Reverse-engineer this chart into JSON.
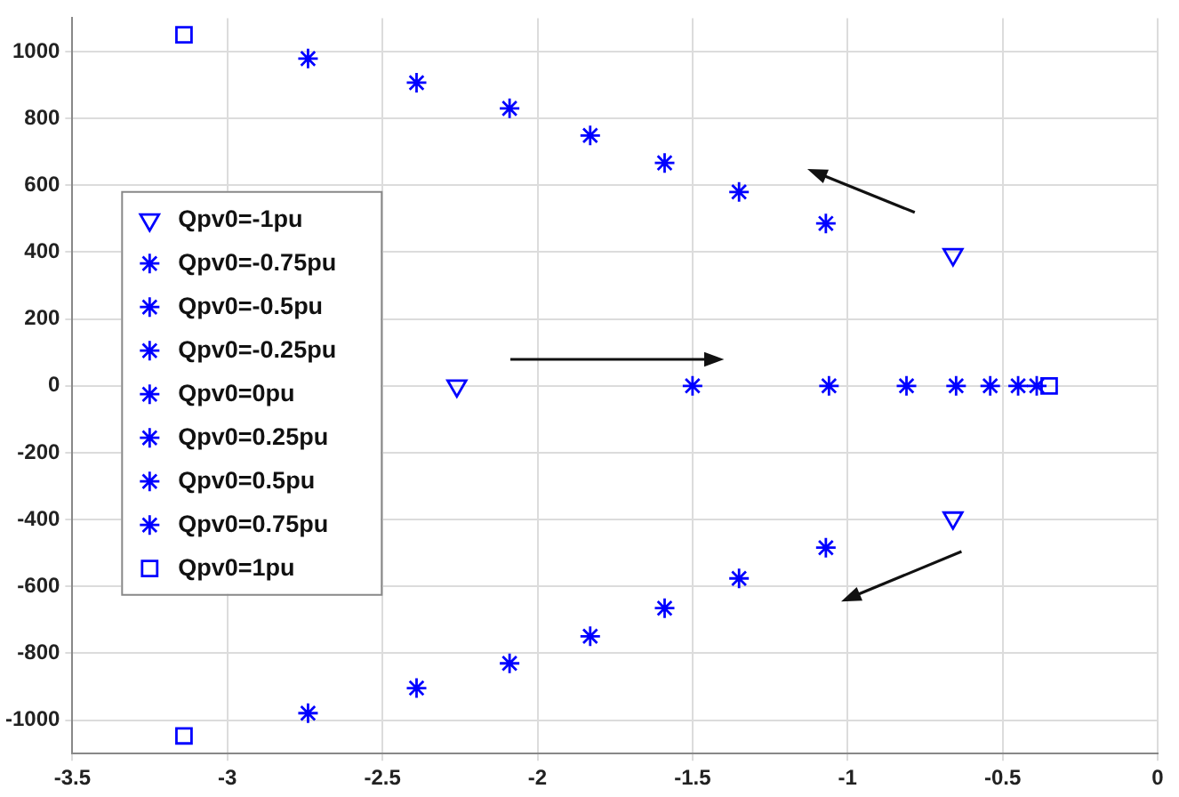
{
  "chart_data": {
    "type": "scatter",
    "xlim": [
      -3.5,
      0
    ],
    "ylim": [
      -1100,
      1100
    ],
    "xticks": [
      -3.5,
      -3,
      -2.5,
      -2,
      -1.5,
      -1,
      -0.5,
      0
    ],
    "yticks": [
      -1000,
      -800,
      -600,
      -400,
      -200,
      0,
      200,
      400,
      600,
      800,
      1000
    ],
    "grid": true,
    "legend": "left",
    "series": [
      {
        "name": "Qpv0=-1pu",
        "color": "#0000ff",
        "marker": "triangle",
        "x": [
          -0.66,
          -2.26,
          -0.66
        ],
        "values": [
          393,
          0,
          -395
        ]
      },
      {
        "name": "Qpv0=-0.75pu",
        "color": "#0000ff",
        "marker": "cross",
        "x": [
          -1.07,
          -1.5,
          -1.07
        ],
        "values": [
          486,
          0,
          -484
        ]
      },
      {
        "name": "Qpv0=-0.5pu",
        "color": "#0000ff",
        "marker": "cross",
        "x": [
          -1.35,
          -1.06,
          -1.35
        ],
        "values": [
          580,
          0,
          -576
        ]
      },
      {
        "name": "Qpv0=-0.25pu",
        "color": "#0000ff",
        "marker": "cross",
        "x": [
          -1.59,
          -0.81,
          -1.59
        ],
        "values": [
          667,
          0,
          -665
        ]
      },
      {
        "name": "Qpv0=0pu",
        "color": "#0000ff",
        "marker": "cross",
        "x": [
          -1.83,
          -0.65,
          -1.83
        ],
        "values": [
          749,
          0,
          -749
        ]
      },
      {
        "name": "Qpv0=0.25pu",
        "color": "#0000ff",
        "marker": "cross",
        "x": [
          -2.09,
          -0.54,
          -2.09
        ],
        "values": [
          830,
          0,
          -830
        ]
      },
      {
        "name": "Qpv0=0.5pu",
        "color": "#0000ff",
        "marker": "cross",
        "x": [
          -2.39,
          -0.45,
          -2.39
        ],
        "values": [
          907,
          0,
          -904
        ]
      },
      {
        "name": "Qpv0=0.75pu",
        "color": "#0000ff",
        "marker": "cross",
        "x": [
          -2.74,
          -0.39,
          -2.74
        ],
        "values": [
          979,
          0,
          -979
        ]
      },
      {
        "name": "Qpv0=1pu",
        "color": "#0000ff",
        "marker": "square",
        "x": [
          -3.14,
          -0.35,
          -3.14
        ],
        "values": [
          1050,
          0,
          -1047
        ]
      }
    ]
  }
}
